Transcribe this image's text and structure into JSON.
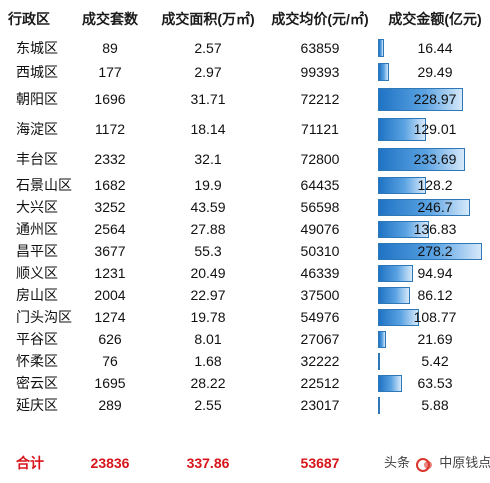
{
  "headers": {
    "district": "行政区",
    "deals": "成交套数",
    "area": "成交面积(万㎡)",
    "avg_price": "成交均价(元/㎡)",
    "amount": "成交金额(亿元)"
  },
  "rows": [
    {
      "district": "东城区",
      "deals": "89",
      "area": "2.57",
      "avg_price": "63859",
      "amount": "16.44",
      "amount_value": 16.44
    },
    {
      "district": "西城区",
      "deals": "177",
      "area": "2.97",
      "avg_price": "99393",
      "amount": "29.49",
      "amount_value": 29.49
    },
    {
      "district": "朝阳区",
      "deals": "1696",
      "area": "31.71",
      "avg_price": "72212",
      "amount": "228.97",
      "amount_value": 228.97
    },
    {
      "district": "海淀区",
      "deals": "1172",
      "area": "18.14",
      "avg_price": "71121",
      "amount": "129.01",
      "amount_value": 129.01
    },
    {
      "district": "丰台区",
      "deals": "2332",
      "area": "32.1",
      "avg_price": "72800",
      "amount": "233.69",
      "amount_value": 233.69
    },
    {
      "district": "石景山区",
      "deals": "1682",
      "area": "19.9",
      "avg_price": "64435",
      "amount": "128.2",
      "amount_value": 128.2
    },
    {
      "district": "大兴区",
      "deals": "3252",
      "area": "43.59",
      "avg_price": "56598",
      "amount": "246.7",
      "amount_value": 246.7
    },
    {
      "district": "通州区",
      "deals": "2564",
      "area": "27.88",
      "avg_price": "49076",
      "amount": "136.83",
      "amount_value": 136.83
    },
    {
      "district": "昌平区",
      "deals": "3677",
      "area": "55.3",
      "avg_price": "50310",
      "amount": "278.2",
      "amount_value": 278.2
    },
    {
      "district": "顺义区",
      "deals": "1231",
      "area": "20.49",
      "avg_price": "46339",
      "amount": "94.94",
      "amount_value": 94.94
    },
    {
      "district": "房山区",
      "deals": "2004",
      "area": "22.97",
      "avg_price": "37500",
      "amount": "86.12",
      "amount_value": 86.12
    },
    {
      "district": "门头沟区",
      "deals": "1274",
      "area": "19.78",
      "avg_price": "54976",
      "amount": "108.77",
      "amount_value": 108.77
    },
    {
      "district": "平谷区",
      "deals": "626",
      "area": "8.01",
      "avg_price": "27067",
      "amount": "21.69",
      "amount_value": 21.69
    },
    {
      "district": "怀柔区",
      "deals": "76",
      "area": "1.68",
      "avg_price": "32222",
      "amount": "5.42",
      "amount_value": 5.42
    },
    {
      "district": "密云区",
      "deals": "1695",
      "area": "28.22",
      "avg_price": "22512",
      "amount": "63.53",
      "amount_value": 63.53
    },
    {
      "district": "延庆区",
      "deals": "289",
      "area": "2.55",
      "avg_price": "23017",
      "amount": "5.88",
      "amount_value": 5.88
    }
  ],
  "total": {
    "label": "合计",
    "deals": "23836",
    "area": "337.86",
    "avg_price": "53687"
  },
  "watermark": {
    "prefix": "头条",
    "suffix": "中原钱点"
  },
  "colors": {
    "bar": "#1f73c4",
    "total_text": "#d8141b"
  }
}
